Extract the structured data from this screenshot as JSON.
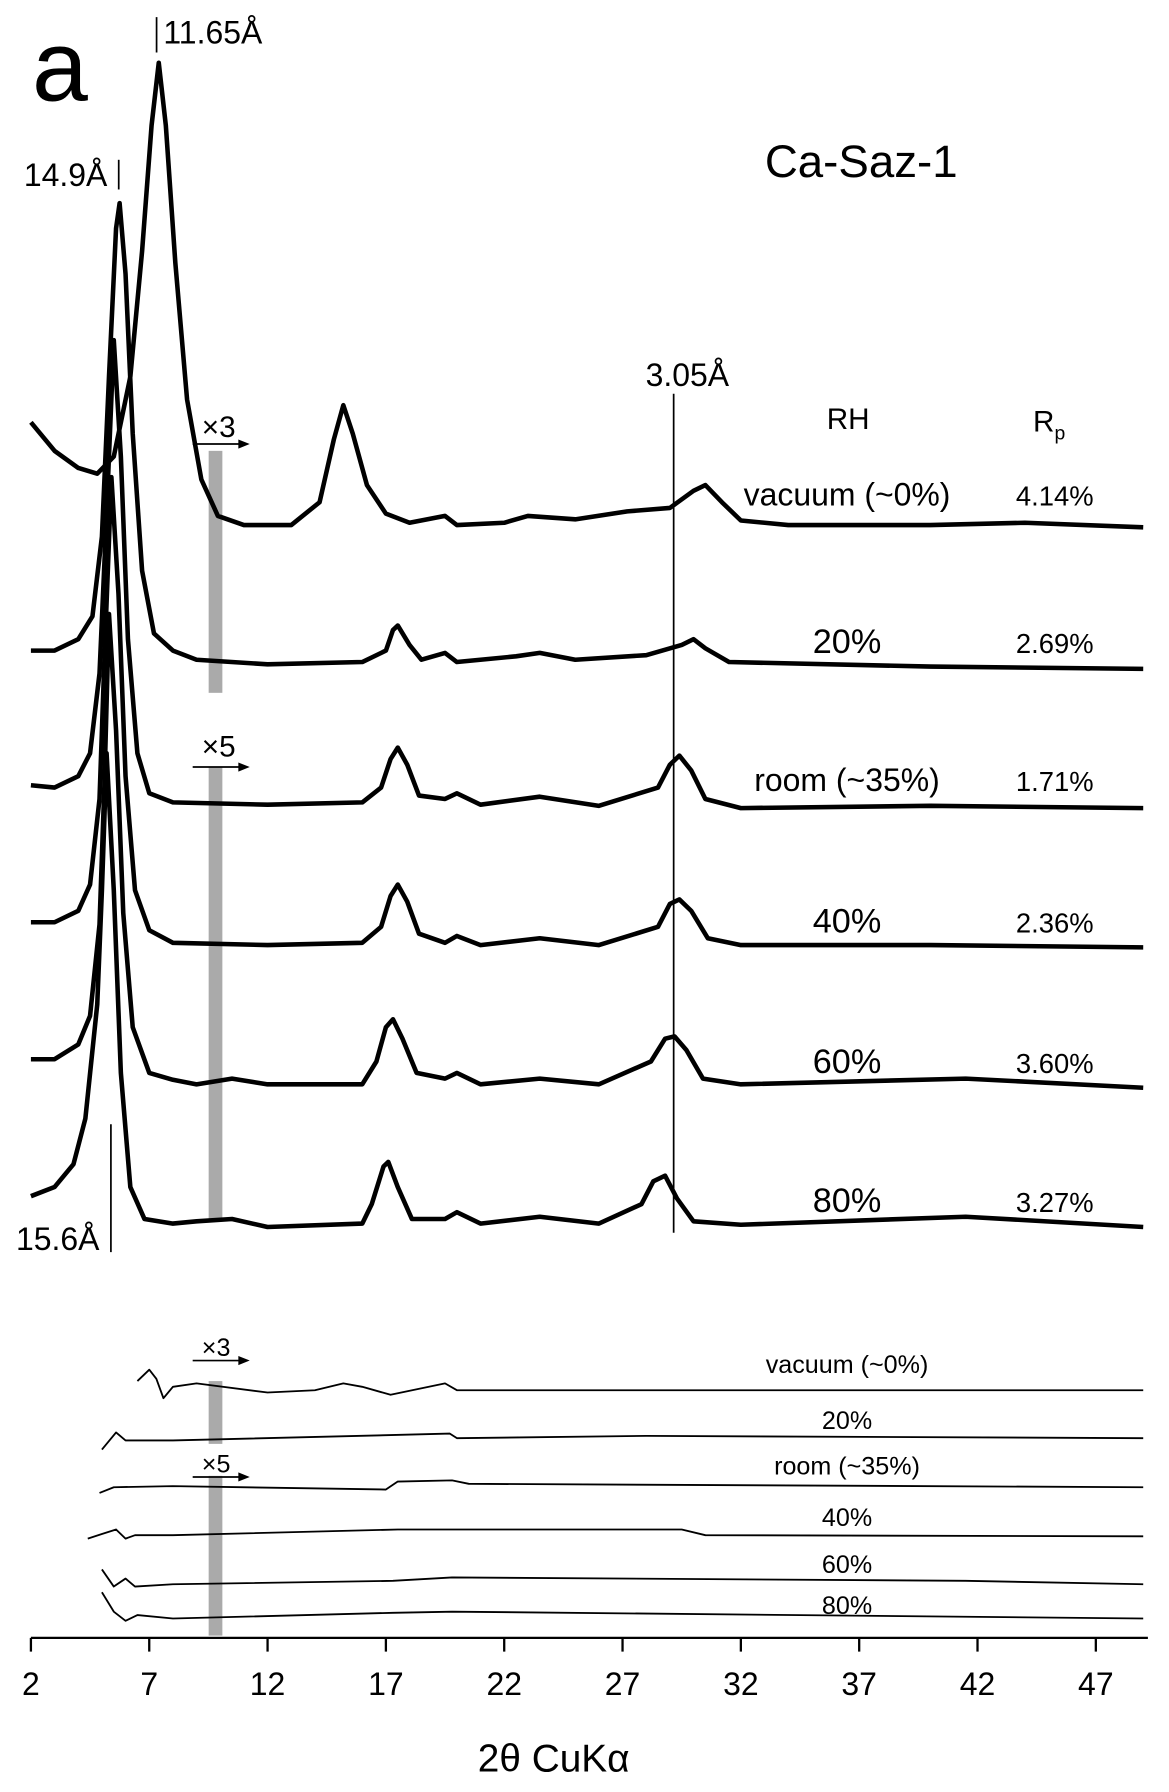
{
  "chart_data": {
    "type": "line",
    "panel_label": "a",
    "title": "Ca-Saz-1",
    "x_label": "2θ CuKα",
    "xlim": [
      2,
      49.2
    ],
    "xticks": [
      2,
      7,
      12,
      17,
      22,
      27,
      32,
      37,
      42,
      47
    ],
    "ylim": [
      0,
      1435
    ],
    "rh_header": "RH",
    "rp_header": "R",
    "rp_header_sub": "p",
    "d_markers": [
      {
        "label": "11.65Å",
        "x": 7.31
      },
      {
        "label": "14.9Å",
        "x": 5.71
      },
      {
        "label": "3.05Å",
        "x": 29.16
      },
      {
        "label": "15.6Å",
        "x": 5.38
      }
    ],
    "scale_factors": [
      {
        "label": "×3",
        "x": 9.8
      },
      {
        "label": "×5",
        "x": 9.8
      }
    ],
    "series": [
      {
        "name": "vacuum (~0%)",
        "rp": "4.14%",
        "x": [
          2,
          3,
          4,
          4.8,
          5.5,
          6.2,
          6.7,
          7.1,
          7.4,
          7.7,
          8.1,
          8.6,
          9.2,
          9.9,
          11,
          13,
          14.2,
          14.8,
          15.2,
          15.6,
          16.2,
          17,
          18,
          19.5,
          20,
          22,
          23,
          25,
          27.2,
          29,
          30,
          30.5,
          31.2,
          32,
          34,
          40,
          44,
          49
        ],
        "values": [
          1065,
          1040,
          1025,
          1020,
          1035,
          1105,
          1215,
          1325,
          1380,
          1325,
          1205,
          1085,
          1015,
          983,
          975,
          975,
          995,
          1050,
          1080,
          1055,
          1010,
          985,
          977,
          983,
          975,
          977,
          983,
          980,
          987,
          990,
          1005,
          1010,
          995,
          979,
          975,
          975,
          977,
          973
        ],
        "residual": {
          "x": [
            6.5,
            7,
            7.3,
            7.6,
            8,
            9,
            12,
            14,
            15.2,
            16,
            17.2,
            19.5,
            20,
            30,
            49
          ],
          "values": [
            225,
            235,
            227,
            210,
            220,
            223,
            215,
            217,
            223,
            220,
            213,
            223,
            217,
            217,
            217
          ]
        }
      },
      {
        "name": "20%",
        "rp": "2.69%",
        "x": [
          2,
          3,
          4,
          4.6,
          5,
          5.3,
          5.6,
          5.75,
          6,
          6.3,
          6.7,
          7.2,
          8,
          9,
          12,
          16,
          17,
          17.3,
          17.5,
          18,
          18.5,
          19.5,
          20,
          22.5,
          23.5,
          25,
          28,
          29.5,
          30,
          30.5,
          31.5,
          40,
          49
        ],
        "values": [
          865,
          865,
          875,
          895,
          965,
          1105,
          1235,
          1257,
          1195,
          1055,
          935,
          880,
          865,
          857,
          853,
          855,
          865,
          883,
          887,
          870,
          857,
          863,
          855,
          860,
          863,
          857,
          861,
          870,
          875,
          867,
          855,
          851,
          849
        ],
        "residual": {
          "x": [
            5,
            5.6,
            6,
            8,
            19.7,
            20,
            28,
            49
          ],
          "values": [
            165,
            180,
            173,
            173,
            179,
            175,
            177,
            175
          ]
        }
      },
      {
        "name": "room (~35%)",
        "rp": "1.71%",
        "x": [
          2,
          3,
          4,
          4.5,
          4.9,
          5.2,
          5.5,
          5.8,
          6.1,
          6.5,
          7,
          8,
          12,
          16,
          16.8,
          17.2,
          17.5,
          17.9,
          18.4,
          19.5,
          20,
          21,
          23.5,
          26,
          28.5,
          29,
          29.4,
          29.9,
          30.5,
          32,
          40,
          49
        ],
        "values": [
          747,
          745,
          755,
          775,
          845,
          985,
          1137,
          1035,
          875,
          775,
          740,
          732,
          730,
          732,
          745,
          770,
          780,
          765,
          738,
          735,
          740,
          730,
          737,
          729,
          745,
          765,
          773,
          760,
          735,
          727,
          729,
          727
        ],
        "residual": {
          "x": [
            4.9,
            5.5,
            8,
            17,
            17.5,
            19.8,
            20.5,
            49
          ],
          "values": [
            127,
            132,
            133,
            130,
            137,
            138,
            135,
            132
          ]
        }
      },
      {
        "name": "40%",
        "rp": "2.36%",
        "x": [
          2,
          3,
          4,
          4.5,
          4.9,
          5.1,
          5.4,
          5.7,
          6,
          6.4,
          7,
          8,
          12,
          16,
          16.8,
          17.2,
          17.5,
          17.9,
          18.4,
          19.5,
          20,
          21,
          23.5,
          26,
          28.5,
          29,
          29.4,
          29.9,
          30.6,
          32,
          40,
          49
        ],
        "values": [
          627,
          627,
          637,
          660,
          735,
          855,
          1017,
          915,
          755,
          655,
          620,
          609,
          607,
          609,
          623,
          650,
          660,
          645,
          617,
          609,
          615,
          607,
          613,
          607,
          623,
          643,
          647,
          637,
          613,
          607,
          607,
          605
        ],
        "residual": {
          "x": [
            4.4,
            5,
            5.6,
            6,
            6.4,
            8,
            17.5,
            19.8,
            29.5,
            30.5,
            49
          ],
          "values": [
            87,
            91,
            95,
            87,
            90,
            90,
            95,
            95,
            95,
            90,
            89
          ]
        }
      },
      {
        "name": "60%",
        "rp": "3.60%",
        "x": [
          2,
          3,
          4,
          4.5,
          4.9,
          5.1,
          5.3,
          5.6,
          5.9,
          6.3,
          7,
          8,
          9,
          10.5,
          12,
          16,
          16.6,
          17,
          17.3,
          17.7,
          18.3,
          19.5,
          20,
          21,
          23.5,
          26,
          28.2,
          28.8,
          29.2,
          29.7,
          30.4,
          32,
          41.5,
          49
        ],
        "values": [
          507,
          507,
          520,
          545,
          625,
          745,
          897,
          795,
          635,
          535,
          495,
          489,
          485,
          490,
          485,
          485,
          505,
          535,
          542,
          525,
          495,
          490,
          495,
          485,
          490,
          485,
          505,
          525,
          527,
          515,
          490,
          485,
          490,
          482
        ],
        "residual": {
          "x": [
            5,
            5.5,
            6,
            6.4,
            8,
            17.3,
            19.8,
            41.5,
            49
          ],
          "values": [
            60,
            45,
            52,
            45,
            47,
            50,
            53,
            50,
            47
          ]
        }
      },
      {
        "name": "80%",
        "rp": "3.27%",
        "x": [
          2,
          3,
          3.8,
          4.3,
          4.8,
          5,
          5.2,
          5.5,
          5.8,
          6.2,
          6.8,
          8,
          9,
          10.5,
          12,
          16,
          16.4,
          16.9,
          17.1,
          17.5,
          18.1,
          19.5,
          20,
          21,
          23.5,
          26,
          27.8,
          28.3,
          28.8,
          29.3,
          30,
          32,
          41.5,
          49
        ],
        "values": [
          387,
          395,
          415,
          455,
          555,
          655,
          775,
          655,
          495,
          395,
          367,
          363,
          365,
          367,
          360,
          363,
          380,
          413,
          417,
          395,
          367,
          367,
          373,
          363,
          369,
          363,
          380,
          400,
          405,
          385,
          365,
          362,
          369,
          360
        ],
        "residual": {
          "x": [
            5,
            5.5,
            6,
            6.5,
            8,
            17.3,
            19.8,
            49
          ],
          "values": [
            40,
            23,
            15,
            20,
            17,
            22,
            23,
            17
          ]
        }
      }
    ]
  }
}
